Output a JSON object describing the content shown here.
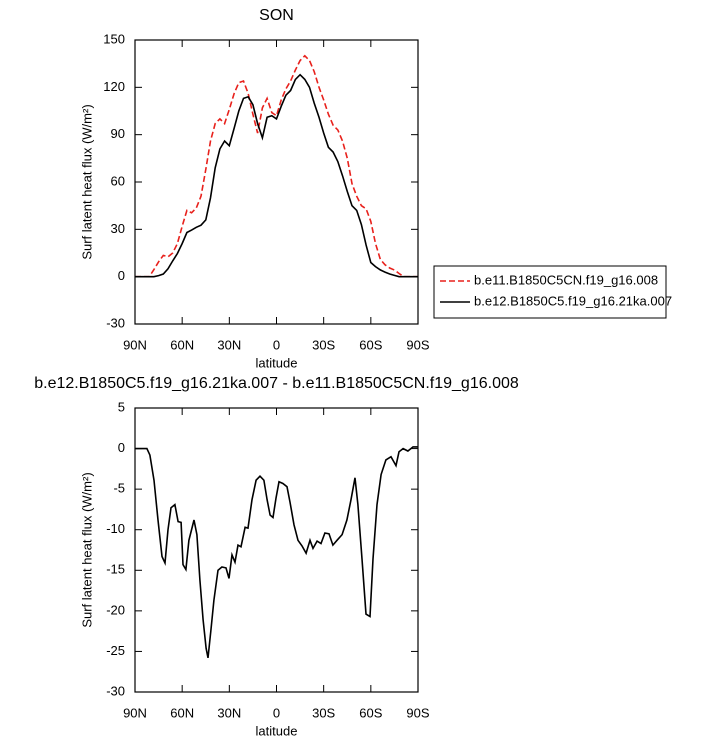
{
  "chart_data": [
    {
      "type": "line",
      "title": "SON",
      "xlabel": "latitude",
      "ylabel": "Surf latent heat flux (W/m²)",
      "x": [
        90,
        87,
        84,
        81,
        78,
        75,
        72,
        69,
        66,
        63,
        60,
        57,
        54,
        51,
        48,
        45,
        42,
        39,
        36,
        33,
        30,
        27,
        24,
        21,
        18,
        15,
        12,
        9,
        6,
        3,
        0,
        -3,
        -6,
        -9,
        -12,
        -15,
        -18,
        -21,
        -24,
        -27,
        -30,
        -33,
        -36,
        -39,
        -42,
        -45,
        -48,
        -51,
        -54,
        -57,
        -60,
        -63,
        -66,
        -69,
        -72,
        -75,
        -78,
        -81,
        -84,
        -87,
        -90
      ],
      "series": [
        {
          "name": "b.e11.B1850C5CN.f19_g16.008",
          "color": "#e8211c",
          "dashed": true,
          "values": [
            0,
            0,
            0,
            0,
            4.5,
            9.4,
            13.5,
            12.6,
            15,
            21,
            32,
            42,
            40.5,
            43.5,
            51,
            68,
            86,
            97,
            100,
            97,
            106,
            116,
            123,
            124,
            116,
            103,
            91,
            107,
            113,
            104,
            102,
            112,
            119,
            124,
            131,
            137,
            140,
            137,
            130,
            120,
            112,
            103,
            96,
            93,
            86,
            75,
            59,
            51,
            45,
            43,
            35,
            21,
            11,
            7.5,
            5.5,
            4.2,
            2,
            0,
            0,
            0,
            0
          ]
        },
        {
          "name": "b.e12.B1850C5.f19_g16.21ka.007",
          "color": "#000000",
          "dashed": false,
          "values": [
            0,
            0,
            0,
            0,
            0,
            0.7,
            1.7,
            5,
            10,
            14.7,
            21,
            28,
            29.5,
            31.3,
            32.6,
            36,
            50,
            69,
            81,
            86,
            83,
            94,
            105,
            113,
            114,
            109,
            97,
            88,
            101,
            102,
            100,
            108,
            115,
            118,
            125,
            128,
            125,
            120,
            110,
            101,
            91,
            82,
            79,
            73,
            64,
            54,
            45,
            42,
            33,
            20,
            9,
            6.4,
            4.3,
            2.9,
            1.7,
            0.8,
            0,
            0,
            0,
            0,
            0
          ]
        }
      ],
      "xlim": [
        90,
        -90
      ],
      "xticks": [
        {
          "value": 90,
          "label": "90N"
        },
        {
          "value": 60,
          "label": "60N"
        },
        {
          "value": 30,
          "label": "30N"
        },
        0,
        {
          "value": -30,
          "label": "30S"
        },
        {
          "value": -60,
          "label": "60S"
        },
        {
          "value": -90,
          "label": "90S"
        }
      ],
      "ylim": [
        -30,
        150
      ],
      "yticks": [
        -30,
        0,
        30,
        60,
        90,
        120,
        150
      ],
      "legend": "right"
    },
    {
      "type": "line",
      "title": "b.e12.B1850C5.f19_g16.21ka.007 - b.e11.B1850C5CN.f19_g16.008",
      "xlabel": "latitude",
      "ylabel": "Surf latent heat flux (W/m²)",
      "x": [
        90,
        82.4,
        80.5,
        77.9,
        75.4,
        72.8,
        70.9,
        69.0,
        67.1,
        64.6,
        62.6,
        60.7,
        59.5,
        57.6,
        55.7,
        52.5,
        50.6,
        48.7,
        46.7,
        44.8,
        43.6,
        41.7,
        39.8,
        37.2,
        34.7,
        32.1,
        30.2,
        28.3,
        26.4,
        24.5,
        22.6,
        20.0,
        18.1,
        15.6,
        13.0,
        10.5,
        8.0,
        6.0,
        4.1,
        2.2,
        0.3,
        -1.6,
        -4.1,
        -6.7,
        -8.6,
        -11.1,
        -13.7,
        -16.2,
        -18.8,
        -21.3,
        -23.2,
        -25.8,
        -28.3,
        -30.8,
        -33.4,
        -35.9,
        -38.5,
        -41.7,
        -44.8,
        -47.4,
        -49.9,
        -51.8,
        -54.4,
        -56.9,
        -59.5,
        -61.4,
        -63.9,
        -66.5,
        -69.6,
        -72.8,
        -76.0,
        -77.9,
        -80.5,
        -83.6,
        -86.8,
        -90
      ],
      "values": [
        0,
        0,
        -0.8,
        -3.9,
        -8.8,
        -13.3,
        -14.1,
        -10,
        -7.3,
        -6.9,
        -9,
        -9.1,
        -14.3,
        -14.9,
        -11.3,
        -8.8,
        -10.6,
        -16.2,
        -21.1,
        -24.6,
        -25.8,
        -22.4,
        -18.7,
        -15,
        -14.6,
        -14.7,
        -16,
        -13.1,
        -14,
        -11.9,
        -12.1,
        -9.7,
        -9.8,
        -6.3,
        -3.9,
        -3.4,
        -3.9,
        -6.3,
        -8.2,
        -8.5,
        -6.1,
        -4.1,
        -4.3,
        -4.7,
        -6.6,
        -9.4,
        -11.3,
        -12,
        -12.9,
        -11.3,
        -12.3,
        -11.4,
        -11.7,
        -10.4,
        -10.5,
        -11.9,
        -11.3,
        -10.6,
        -8.8,
        -6.3,
        -3.6,
        -6.9,
        -13.6,
        -20.4,
        -20.7,
        -13.6,
        -6.9,
        -3.2,
        -1.4,
        -1,
        -2.1,
        -0.4,
        0,
        -0.3,
        0.2,
        0.2
      ],
      "color": "#000000",
      "xlim": [
        90,
        -90
      ],
      "xticks": [
        {
          "value": 90,
          "label": "90N"
        },
        {
          "value": 60,
          "label": "60N"
        },
        {
          "value": 30,
          "label": "30N"
        },
        0,
        {
          "value": -30,
          "label": "30S"
        },
        {
          "value": -60,
          "label": "60S"
        },
        {
          "value": -90,
          "label": "90S"
        }
      ],
      "ylim": [
        -30,
        5
      ],
      "yticks": [
        -30,
        -25,
        -20,
        -15,
        -10,
        -5,
        0,
        5
      ]
    }
  ]
}
